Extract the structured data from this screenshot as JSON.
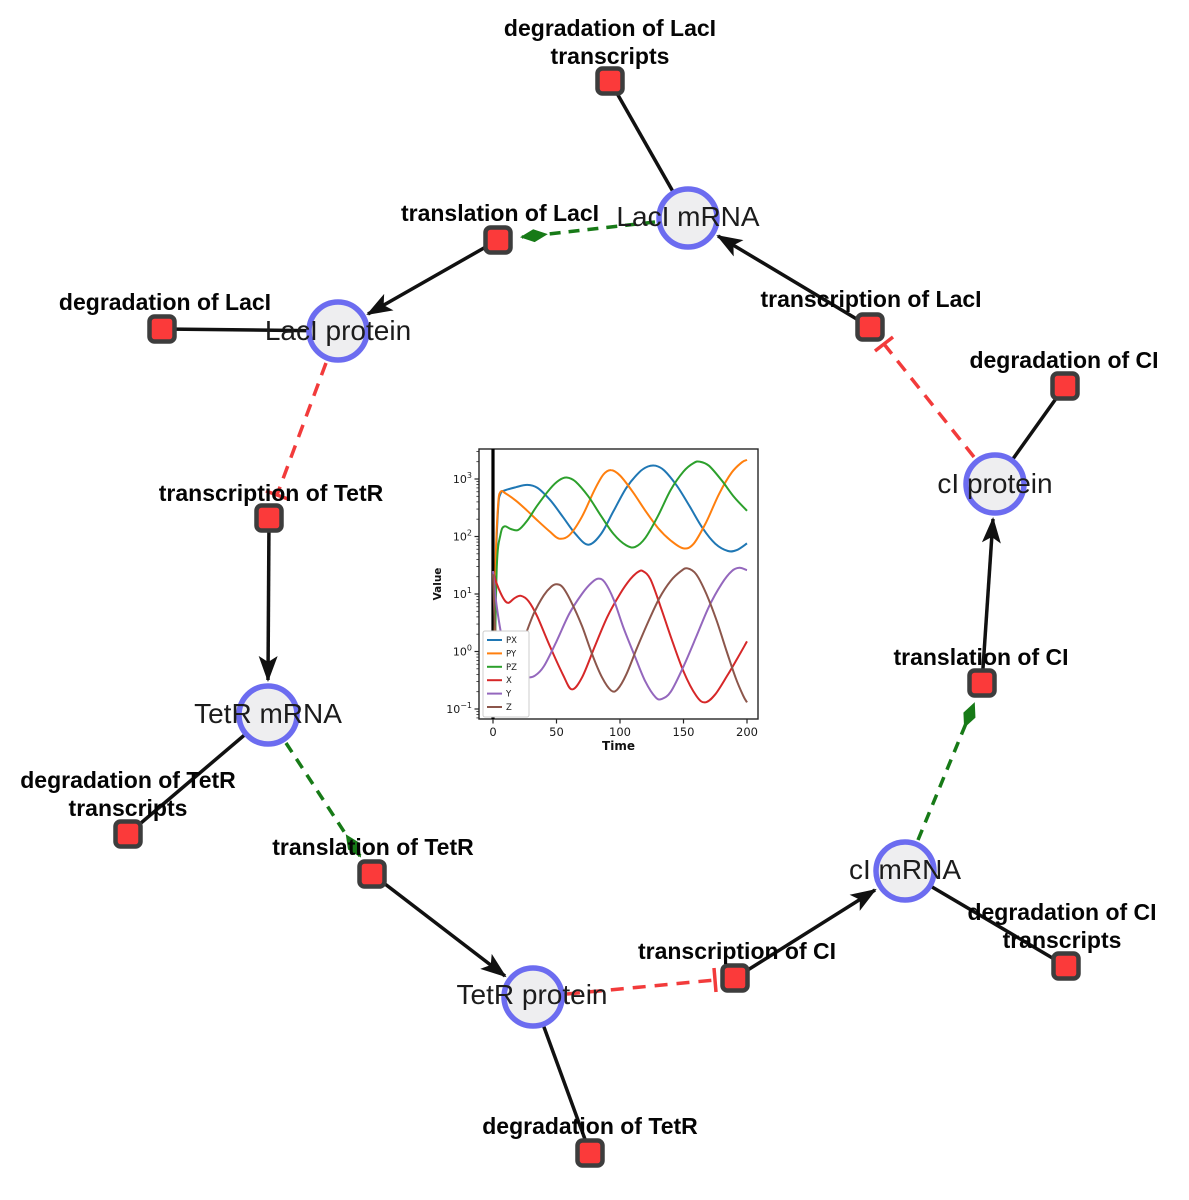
{
  "colors": {
    "species_fill": "#eeeef0",
    "species_border": "#6c6cf0",
    "reaction_fill": "#fb3a3a",
    "reaction_border": "#3d3d3d",
    "edge_black": "#111111",
    "modifier_green": "#177a17",
    "inhibitor_red": "#f23b3b"
  },
  "species": {
    "laci_mrna": {
      "label": "LacI mRNA"
    },
    "laci_protein": {
      "label": "LacI protein"
    },
    "tetr_mrna": {
      "label": "TetR mRNA"
    },
    "tetr_protein": {
      "label": "TetR protein"
    },
    "ci_mrna": {
      "label": "cI mRNA"
    },
    "ci_protein": {
      "label": "cI protein"
    }
  },
  "reactions": {
    "deg_laci_tx": {
      "line1": "degradation of LacI",
      "line2": "transcripts"
    },
    "translation_laci": {
      "line1": "translation of LacI"
    },
    "deg_laci": {
      "line1": "degradation of LacI"
    },
    "transcription_laci": {
      "line1": "transcription of LacI"
    },
    "deg_ci": {
      "line1": "degradation of CI"
    },
    "transcription_tetr": {
      "line1": "transcription of TetR"
    },
    "deg_tetr_tx": {
      "line1": "degradation of TetR",
      "line2": "transcripts"
    },
    "translation_tetr": {
      "line1": "translation of TetR"
    },
    "deg_tetr": {
      "line1": "degradation of TetR"
    },
    "transcription_ci": {
      "line1": "transcription of CI"
    },
    "deg_ci_tx": {
      "line1": "degradation of CI",
      "line2": "transcripts"
    },
    "translation_ci": {
      "line1": "translation of CI"
    }
  },
  "chart_data": {
    "type": "line",
    "title": "",
    "xlabel": "Time",
    "ylabel": "Value",
    "x_ticks": [
      0,
      50,
      100,
      150,
      200
    ],
    "xlim": [
      -11,
      211
    ],
    "ylog": true,
    "y_ticks_exp": [
      -1,
      0,
      1,
      2,
      3
    ],
    "ylim": [
      0.07,
      3300
    ],
    "vline_x": 0,
    "grid": false,
    "legend_position": "lower left",
    "series": [
      {
        "name": "PX",
        "color": "#1f77b4",
        "points": [
          [
            1,
            0.3
          ],
          [
            2,
            20
          ],
          [
            4,
            300
          ],
          [
            6,
            560
          ],
          [
            10,
            640
          ],
          [
            18,
            720
          ],
          [
            27,
            790
          ],
          [
            35,
            700
          ],
          [
            45,
            430
          ],
          [
            55,
            220
          ],
          [
            65,
            110
          ],
          [
            75,
            72
          ],
          [
            85,
            110
          ],
          [
            95,
            280
          ],
          [
            105,
            700
          ],
          [
            115,
            1300
          ],
          [
            122,
            1650
          ],
          [
            128,
            1700
          ],
          [
            135,
            1400
          ],
          [
            145,
            750
          ],
          [
            155,
            330
          ],
          [
            165,
            140
          ],
          [
            175,
            75
          ],
          [
            185,
            56
          ],
          [
            192,
            58
          ],
          [
            200,
            76
          ]
        ]
      },
      {
        "name": "PY",
        "color": "#ff7f0e",
        "points": [
          [
            1,
            0.3
          ],
          [
            2,
            30
          ],
          [
            4,
            350
          ],
          [
            6,
            600
          ],
          [
            10,
            560
          ],
          [
            18,
            420
          ],
          [
            27,
            280
          ],
          [
            35,
            190
          ],
          [
            45,
            120
          ],
          [
            52,
            92
          ],
          [
            60,
            105
          ],
          [
            70,
            220
          ],
          [
            80,
            650
          ],
          [
            87,
            1200
          ],
          [
            93,
            1430
          ],
          [
            100,
            1150
          ],
          [
            110,
            600
          ],
          [
            120,
            280
          ],
          [
            130,
            140
          ],
          [
            140,
            85
          ],
          [
            150,
            62
          ],
          [
            158,
            75
          ],
          [
            168,
            180
          ],
          [
            178,
            550
          ],
          [
            188,
            1300
          ],
          [
            196,
            1950
          ],
          [
            200,
            2150
          ]
        ]
      },
      {
        "name": "PZ",
        "color": "#2ca02c",
        "points": [
          [
            1,
            0.2
          ],
          [
            3,
            30
          ],
          [
            6,
            110
          ],
          [
            9,
            150
          ],
          [
            14,
            135
          ],
          [
            20,
            130
          ],
          [
            27,
            190
          ],
          [
            35,
            350
          ],
          [
            45,
            680
          ],
          [
            52,
            950
          ],
          [
            58,
            1060
          ],
          [
            65,
            900
          ],
          [
            75,
            500
          ],
          [
            85,
            230
          ],
          [
            95,
            110
          ],
          [
            105,
            70
          ],
          [
            112,
            66
          ],
          [
            120,
            95
          ],
          [
            130,
            230
          ],
          [
            140,
            650
          ],
          [
            150,
            1350
          ],
          [
            158,
            1900
          ],
          [
            163,
            2000
          ],
          [
            170,
            1700
          ],
          [
            180,
            950
          ],
          [
            190,
            480
          ],
          [
            200,
            280
          ]
        ]
      },
      {
        "name": "X",
        "color": "#d62728",
        "points": [
          [
            0,
            25
          ],
          [
            3,
            15
          ],
          [
            8,
            8.5
          ],
          [
            12,
            7
          ],
          [
            17,
            8.5
          ],
          [
            22,
            9.3
          ],
          [
            28,
            7.5
          ],
          [
            35,
            4
          ],
          [
            45,
            1.2
          ],
          [
            55,
            0.4
          ],
          [
            62,
            0.22
          ],
          [
            70,
            0.35
          ],
          [
            80,
            1.2
          ],
          [
            90,
            4
          ],
          [
            100,
            10
          ],
          [
            108,
            18
          ],
          [
            114,
            24
          ],
          [
            118,
            25
          ],
          [
            124,
            18
          ],
          [
            132,
            6
          ],
          [
            140,
            1.8
          ],
          [
            150,
            0.45
          ],
          [
            160,
            0.17
          ],
          [
            167,
            0.13
          ],
          [
            175,
            0.18
          ],
          [
            185,
            0.4
          ],
          [
            193,
            0.8
          ],
          [
            200,
            1.5
          ]
        ]
      },
      {
        "name": "Y",
        "color": "#9467bd",
        "points": [
          [
            0,
            25
          ],
          [
            3,
            6
          ],
          [
            8,
            1.4
          ],
          [
            14,
            0.7
          ],
          [
            20,
            0.48
          ],
          [
            27,
            0.36
          ],
          [
            33,
            0.38
          ],
          [
            40,
            0.55
          ],
          [
            50,
            1.5
          ],
          [
            60,
            4.5
          ],
          [
            70,
            10
          ],
          [
            78,
            16
          ],
          [
            83,
            18.5
          ],
          [
            88,
            16
          ],
          [
            95,
            8
          ],
          [
            103,
            2.5
          ],
          [
            112,
            0.8
          ],
          [
            120,
            0.3
          ],
          [
            128,
            0.16
          ],
          [
            133,
            0.15
          ],
          [
            140,
            0.2
          ],
          [
            150,
            0.55
          ],
          [
            160,
            1.8
          ],
          [
            170,
            6
          ],
          [
            180,
            15
          ],
          [
            188,
            25
          ],
          [
            194,
            28.5
          ],
          [
            200,
            26
          ]
        ]
      },
      {
        "name": "Z",
        "color": "#8c564b",
        "points": [
          [
            0,
            22
          ],
          [
            1.5,
            3
          ],
          [
            4,
            0.8
          ],
          [
            8,
            0.38
          ],
          [
            13,
            0.42
          ],
          [
            18,
            0.7
          ],
          [
            25,
            1.8
          ],
          [
            32,
            4.5
          ],
          [
            40,
            9.5
          ],
          [
            46,
            13.5
          ],
          [
            50,
            14.8
          ],
          [
            55,
            13
          ],
          [
            62,
            7
          ],
          [
            70,
            2.8
          ],
          [
            78,
            0.9
          ],
          [
            86,
            0.35
          ],
          [
            93,
            0.21
          ],
          [
            98,
            0.22
          ],
          [
            105,
            0.4
          ],
          [
            113,
            1.1
          ],
          [
            122,
            3.2
          ],
          [
            131,
            8.5
          ],
          [
            140,
            17
          ],
          [
            148,
            25
          ],
          [
            153,
            28
          ],
          [
            160,
            22
          ],
          [
            168,
            10
          ],
          [
            176,
            3.5
          ],
          [
            184,
            1
          ],
          [
            191,
            0.35
          ],
          [
            197,
            0.17
          ],
          [
            200,
            0.13
          ]
        ]
      }
    ]
  }
}
